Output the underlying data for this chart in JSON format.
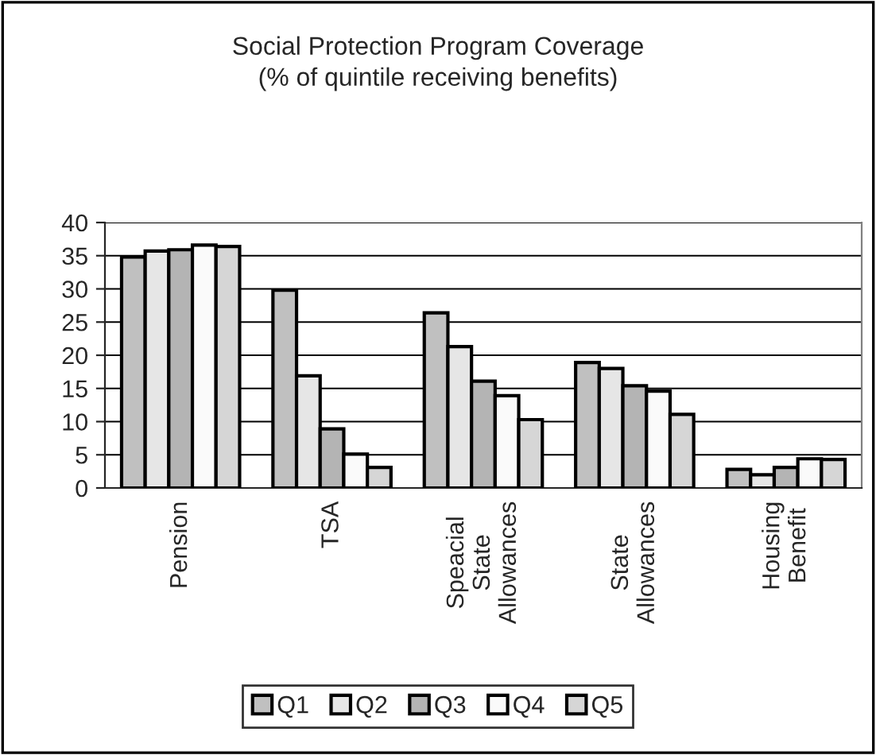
{
  "chart_data": {
    "type": "bar",
    "title": "Social Protection Program Coverage\n(% of quintile receiving benefits)",
    "categories": [
      "Pension",
      "TSA",
      "Speacial\nState\nAllowances",
      "State\nAllowances",
      "Housing\nBenefit"
    ],
    "series": [
      {
        "name": "Q1",
        "color": "#c0c0c0",
        "values": [
          34.8,
          29.8,
          26.4,
          18.9,
          2.8
        ]
      },
      {
        "name": "Q2",
        "color": "#e6e6e6",
        "values": [
          35.7,
          16.9,
          21.3,
          18.0,
          2.0
        ]
      },
      {
        "name": "Q3",
        "color": "#b4b4b4",
        "values": [
          35.9,
          8.9,
          16.1,
          15.4,
          3.1
        ]
      },
      {
        "name": "Q4",
        "color": "#fafafa",
        "values": [
          36.6,
          5.1,
          13.9,
          14.6,
          4.4
        ]
      },
      {
        "name": "Q5",
        "color": "#d6d6d6",
        "values": [
          36.4,
          3.1,
          10.3,
          11.1,
          4.3
        ]
      }
    ],
    "ylim": [
      0,
      40
    ],
    "yticks": [
      0,
      5,
      10,
      15,
      20,
      25,
      30,
      35,
      40
    ],
    "grid": "y",
    "legend": "bottom"
  }
}
